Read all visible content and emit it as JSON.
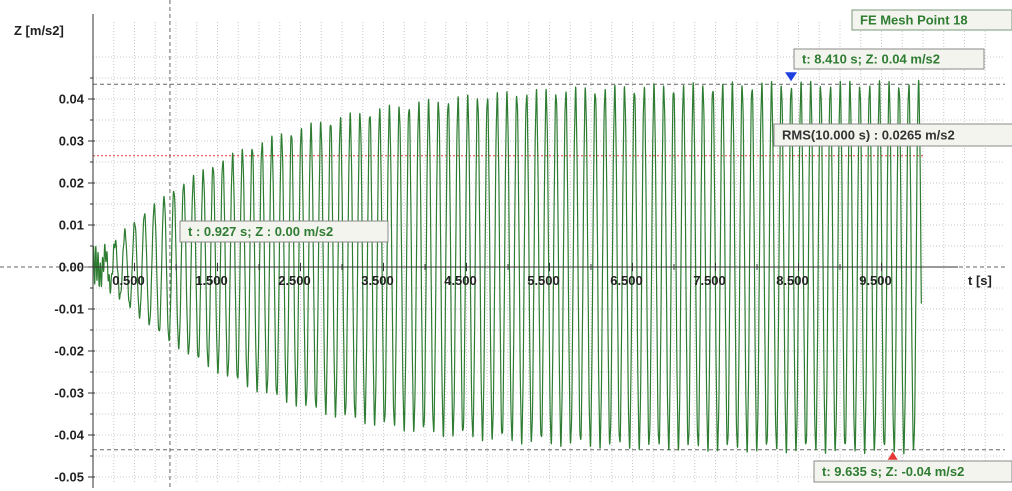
{
  "chart_data": {
    "type": "line",
    "ylabel": "Z [m/s2]",
    "xlabel": "t [s]",
    "legend": "FE Mesh Point 18",
    "xlim": [
      -0.05,
      11.0
    ],
    "ylim": [
      -0.0545,
      0.0545
    ],
    "x_ticks": [
      0.5,
      1.5,
      2.5,
      3.5,
      4.5,
      5.5,
      6.5,
      7.5,
      8.5,
      9.5
    ],
    "x_tick_labels": [
      "0.500",
      "1.500",
      "2.500",
      "3.500",
      "4.500",
      "5.500",
      "6.500",
      "7.500",
      "8.500",
      "9.500"
    ],
    "y_ticks": [
      0.04,
      0.03,
      0.02,
      0.01,
      0.0,
      -0.01,
      -0.02,
      -0.03,
      -0.04,
      -0.05
    ],
    "y_tick_labels": [
      "0.04",
      "0.03",
      "0.02",
      "0.01",
      "0.00",
      "-0.01",
      "-0.02",
      "-0.03",
      "-0.04",
      "-0.05"
    ],
    "grid": true,
    "series": [
      {
        "name": "FE Mesh Point 18",
        "color": "#2e7d32",
        "signal": {
          "kind": "growing_sine",
          "t_start": 0.0,
          "t_end": 9.98,
          "frequency_hz": 8.47,
          "amplitude_final": 0.0435,
          "time_constant_s": 1.8,
          "transient_amplitude": 0.005
        }
      }
    ],
    "rms_line": {
      "value": 0.0265,
      "label": "RMS(10.000 s) : 0.0265 m/s2",
      "color": "#e53935"
    },
    "markers": [
      {
        "t": 8.41,
        "z": 0.0435,
        "label": "t: 8.410 s; Z: 0.04 m/s2",
        "type": "max",
        "color": "#1e40e0"
      },
      {
        "t": 9.635,
        "z": -0.0435,
        "label": "t: 9.635 s; Z: -0.04 m/s2",
        "type": "min",
        "color": "#e53935"
      }
    ],
    "cursor": {
      "t": 0.927,
      "z": 0.0,
      "label": "t : 0.927 s; Z : 0.00 m/s2"
    }
  }
}
